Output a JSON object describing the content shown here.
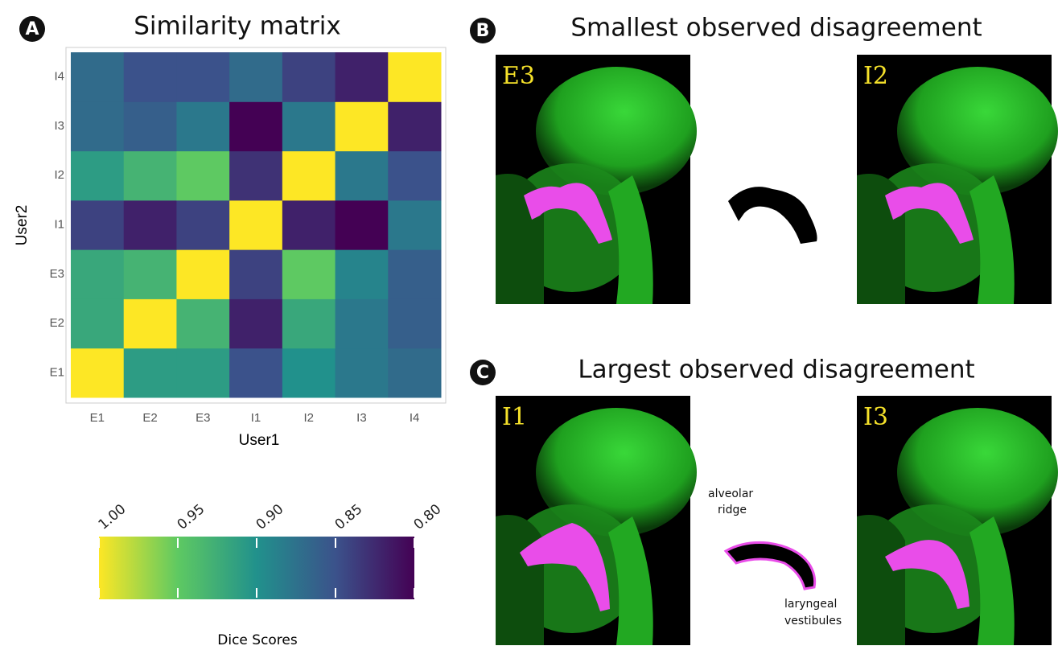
{
  "chart_data": {
    "type": "heatmap",
    "panel": "A",
    "title": "Similarity matrix",
    "xlabel": "User1",
    "ylabel": "User2",
    "x": [
      "E1",
      "E2",
      "E3",
      "I1",
      "I2",
      "I3",
      "I4"
    ],
    "y": [
      "E1",
      "E2",
      "E3",
      "I1",
      "I2",
      "I3",
      "I4"
    ],
    "values": [
      [
        1.0,
        0.91,
        0.91,
        0.85,
        0.9,
        0.88,
        0.87
      ],
      [
        0.92,
        1.0,
        0.93,
        0.82,
        0.92,
        0.88,
        0.86
      ],
      [
        0.92,
        0.93,
        1.0,
        0.84,
        0.95,
        0.89,
        0.86
      ],
      [
        0.84,
        0.82,
        0.84,
        1.0,
        0.82,
        0.8,
        0.88
      ],
      [
        0.91,
        0.93,
        0.95,
        0.83,
        1.0,
        0.88,
        0.85
      ],
      [
        0.87,
        0.86,
        0.88,
        0.8,
        0.88,
        1.0,
        0.82
      ],
      [
        0.87,
        0.85,
        0.85,
        0.87,
        0.84,
        0.82,
        1.0
      ]
    ],
    "colormap": "viridis",
    "clim": [
      0.8,
      1.0
    ],
    "colorbar_reversed": true,
    "colorbar_label": "Dice Scores",
    "colorbar_ticks": [
      {
        "value": 1.0,
        "label": "1.00"
      },
      0.95,
      {
        "value": 0.9,
        "label": "0.90"
      },
      0.85,
      {
        "value": 0.8,
        "label": "0.80"
      }
    ]
  },
  "panels": [
    {
      "letter": "B",
      "title": "Smallest observed disagreement",
      "left": "E3",
      "right": "I2"
    },
    {
      "letter": "C",
      "title": "Largest observed disagreement",
      "left": "I1",
      "right": "I3",
      "annotations": [
        [
          "alveolar",
          "ridge"
        ],
        [
          "laryngeal",
          "vestibules"
        ]
      ]
    }
  ]
}
